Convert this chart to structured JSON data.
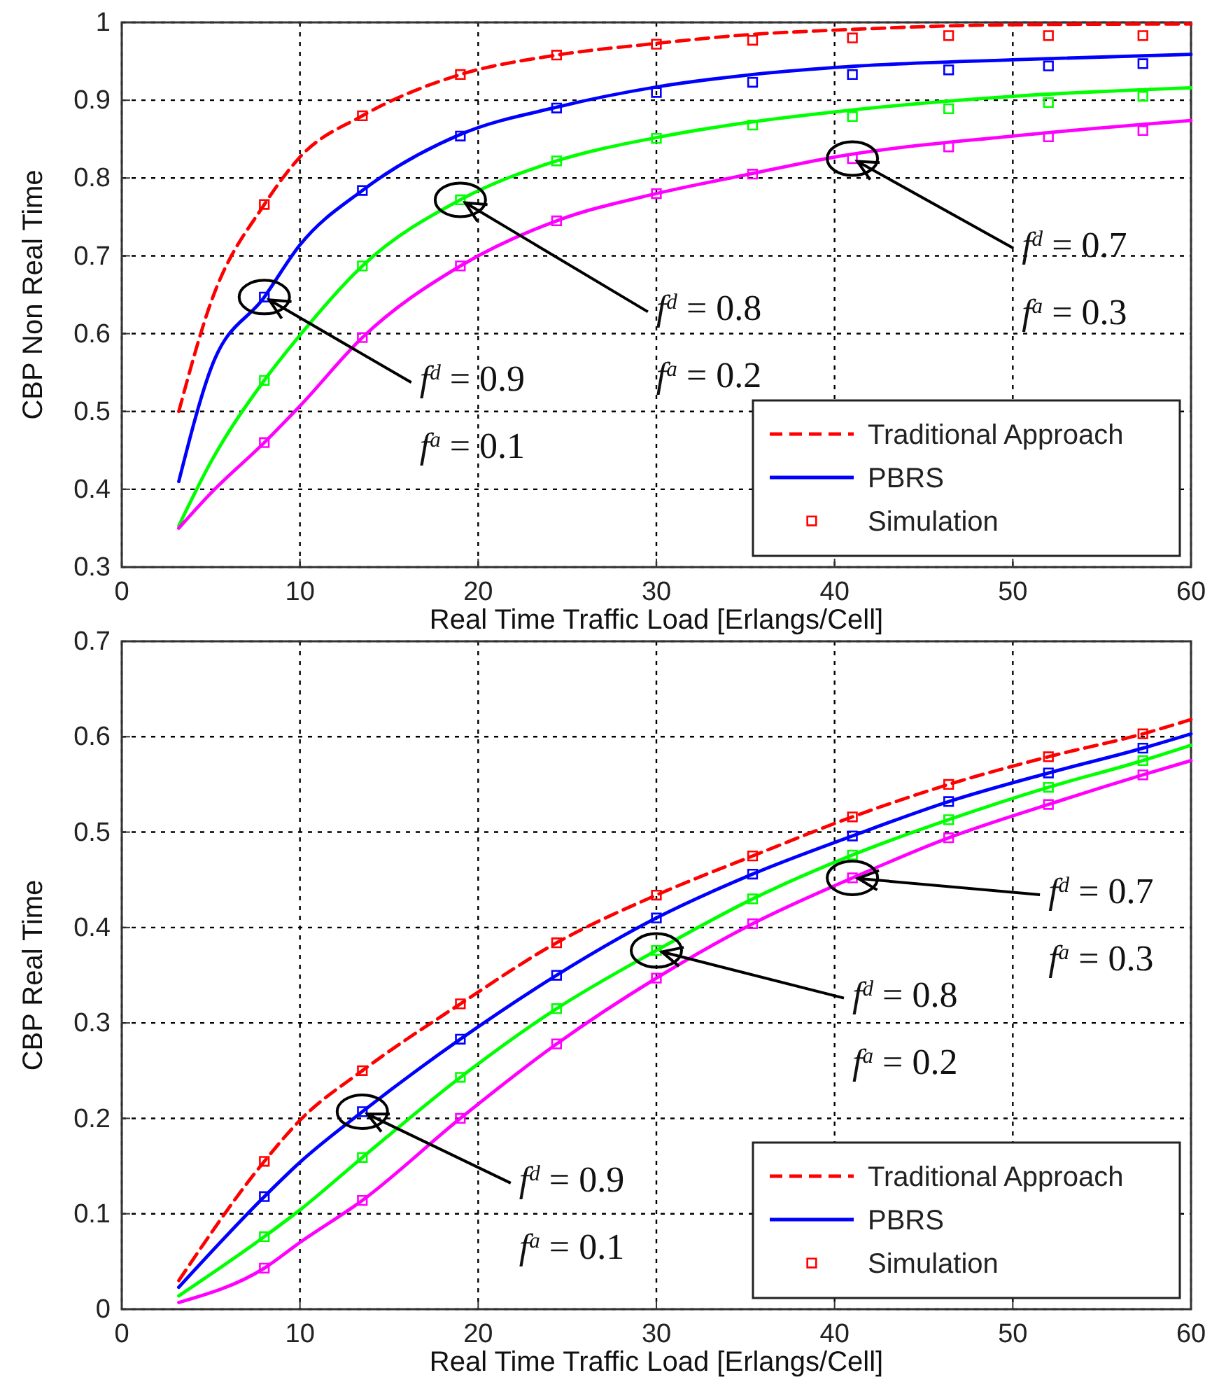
{
  "chart_data": [
    {
      "type": "line",
      "xlabel": "Real Time Traffic Load [Erlangs/Cell]",
      "ylabel": "CBP Non Real Time",
      "xlim": [
        0,
        60
      ],
      "xticks": [
        0,
        10,
        20,
        30,
        40,
        50,
        60
      ],
      "ylim": [
        0.3,
        1
      ],
      "yticks": [
        0.3,
        0.4,
        0.5,
        0.6,
        0.7,
        0.8,
        0.9,
        1
      ],
      "grid": true,
      "legend": "bottom right",
      "series": [
        {
          "name": "Traditional Approach",
          "type": "line",
          "color": "#ff0000",
          "line_style": "dashed",
          "marker": "none",
          "x": [
            3.2,
            5,
            8,
            10,
            13.5,
            19,
            24.4,
            30,
            35,
            40,
            50,
            60
          ],
          "values": [
            0.5,
            0.64,
            0.766,
            0.827,
            0.88,
            0.933,
            0.958,
            0.973,
            0.984,
            0.99,
            0.997,
            0.998
          ]
        },
        {
          "name": "PBRS",
          "type": "line",
          "color": "#0000ff",
          "line_style": "solid",
          "marker": "none",
          "x": [
            3.2,
            5,
            8,
            10,
            13.5,
            19,
            24.4,
            30,
            35,
            40,
            50,
            60
          ],
          "values": [
            0.41,
            0.555,
            0.647,
            0.714,
            0.784,
            0.856,
            0.891,
            0.917,
            0.932,
            0.942,
            0.952,
            0.959
          ]
        },
        {
          "type": "line",
          "color": "#00ff00",
          "line_style": "solid",
          "marker": "none",
          "x": [
            3.2,
            5,
            8,
            10,
            13.5,
            19,
            24.4,
            30,
            35,
            40,
            50,
            60
          ],
          "values": [
            0.353,
            0.435,
            0.54,
            0.598,
            0.687,
            0.772,
            0.822,
            0.852,
            0.871,
            0.885,
            0.905,
            0.916
          ]
        },
        {
          "type": "line",
          "color": "#ff00ff",
          "line_style": "solid",
          "marker": "none",
          "x": [
            3.2,
            5,
            8,
            10,
            13.5,
            19,
            24.4,
            30,
            35,
            40,
            50,
            60
          ],
          "values": [
            0.35,
            0.395,
            0.46,
            0.507,
            0.595,
            0.687,
            0.745,
            0.78,
            0.804,
            0.827,
            0.854,
            0.874
          ]
        },
        {
          "name": "Simulation",
          "type": "scatter",
          "color": "#ff0000",
          "marker": "square",
          "x": [
            8,
            13.5,
            19,
            24.4,
            30,
            35.4,
            41,
            46.4,
            52,
            57.3
          ],
          "values": [
            0.766,
            0.88,
            0.933,
            0.958,
            0.972,
            0.977,
            0.98,
            0.983,
            0.983,
            0.983
          ]
        },
        {
          "type": "scatter",
          "color": "#0000ff",
          "marker": "square",
          "x": [
            8,
            13.5,
            19,
            24.4,
            30,
            35.4,
            41,
            46.4,
            52,
            57.3
          ],
          "values": [
            0.647,
            0.784,
            0.854,
            0.89,
            0.91,
            0.923,
            0.933,
            0.939,
            0.944,
            0.947
          ]
        },
        {
          "type": "scatter",
          "color": "#00ff00",
          "marker": "square",
          "x": [
            8,
            13.5,
            19,
            24.4,
            30,
            35.4,
            41,
            46.4,
            52,
            57.3
          ],
          "values": [
            0.54,
            0.687,
            0.772,
            0.822,
            0.851,
            0.868,
            0.879,
            0.889,
            0.897,
            0.905
          ]
        },
        {
          "type": "scatter",
          "color": "#ff00ff",
          "marker": "square",
          "x": [
            8,
            13.5,
            19,
            24.4,
            30,
            35.4,
            41,
            46.4,
            52,
            57.3
          ],
          "values": [
            0.46,
            0.595,
            0.687,
            0.745,
            0.78,
            0.805,
            0.825,
            0.84,
            0.853,
            0.861
          ]
        }
      ],
      "annotations": [
        {
          "text": "f$^{d}$ = 0.9\nf$^{a}$ = 0.1",
          "x": 8,
          "y": 0.647
        },
        {
          "text": "f$^{d}$ = 0.8\nf$^{a}$ = 0.2",
          "x": 19,
          "y": 0.772
        },
        {
          "text": "f$^{d}$ = 0.7\nf$^{a}$ = 0.3",
          "x": 41,
          "y": 0.825
        }
      ]
    },
    {
      "type": "line",
      "xlabel": "Real Time Traffic Load [Erlangs/Cell]",
      "ylabel": "CBP Real Time",
      "xlim": [
        0,
        60
      ],
      "xticks": [
        0,
        10,
        20,
        30,
        40,
        50,
        60
      ],
      "ylim": [
        0,
        0.7
      ],
      "yticks": [
        0,
        0.1,
        0.2,
        0.3,
        0.4,
        0.5,
        0.6,
        0.7
      ],
      "grid": true,
      "legend": "bottom right",
      "series": [
        {
          "name": "Traditional Approach",
          "type": "line",
          "color": "#ff0000",
          "line_style": "dashed",
          "marker": "none",
          "x": [
            3.2,
            8,
            10,
            13.5,
            19,
            24.4,
            30,
            35.4,
            41,
            46.4,
            52,
            57.3,
            60
          ],
          "values": [
            0.03,
            0.155,
            0.198,
            0.25,
            0.32,
            0.384,
            0.434,
            0.475,
            0.516,
            0.55,
            0.579,
            0.603,
            0.618
          ]
        },
        {
          "name": "PBRS",
          "type": "line",
          "color": "#0000ff",
          "line_style": "solid",
          "marker": "none",
          "x": [
            3.2,
            8,
            10,
            13.5,
            19,
            24.4,
            30,
            35.4,
            41,
            46.4,
            52,
            57.3,
            60
          ],
          "values": [
            0.023,
            0.118,
            0.154,
            0.207,
            0.283,
            0.35,
            0.41,
            0.456,
            0.496,
            0.532,
            0.562,
            0.588,
            0.603
          ]
        },
        {
          "type": "line",
          "color": "#00ff00",
          "line_style": "solid",
          "marker": "none",
          "x": [
            3.2,
            8,
            10,
            13.5,
            19,
            24.4,
            30,
            35.4,
            41,
            46.4,
            52,
            57.3,
            60
          ],
          "values": [
            0.014,
            0.076,
            0.104,
            0.159,
            0.243,
            0.315,
            0.376,
            0.43,
            0.476,
            0.513,
            0.547,
            0.575,
            0.591
          ]
        },
        {
          "type": "line",
          "color": "#ff00ff",
          "line_style": "solid",
          "marker": "none",
          "x": [
            3.2,
            8,
            10,
            13.5,
            19,
            24.4,
            30,
            35.4,
            41,
            46.4,
            52,
            57.3,
            60
          ],
          "values": [
            0.007,
            0.043,
            0.07,
            0.114,
            0.2,
            0.278,
            0.347,
            0.404,
            0.452,
            0.494,
            0.529,
            0.56,
            0.575
          ]
        },
        {
          "name": "Simulation",
          "type": "scatter",
          "color": "#ff0000",
          "marker": "square",
          "x": [
            8,
            13.5,
            19,
            24.4,
            30,
            35.4,
            41,
            46.4,
            52,
            57.3
          ],
          "values": [
            0.155,
            0.25,
            0.32,
            0.384,
            0.434,
            0.475,
            0.516,
            0.55,
            0.579,
            0.603
          ]
        },
        {
          "type": "scatter",
          "color": "#0000ff",
          "marker": "square",
          "x": [
            8,
            13.5,
            19,
            24.4,
            30,
            35.4,
            41,
            46.4,
            52,
            57.3
          ],
          "values": [
            0.118,
            0.207,
            0.283,
            0.35,
            0.41,
            0.456,
            0.496,
            0.532,
            0.562,
            0.588
          ]
        },
        {
          "type": "scatter",
          "color": "#00ff00",
          "marker": "square",
          "x": [
            8,
            13.5,
            19,
            24.4,
            30,
            35.4,
            41,
            46.4,
            52,
            57.3
          ],
          "values": [
            0.076,
            0.159,
            0.243,
            0.315,
            0.376,
            0.43,
            0.476,
            0.513,
            0.547,
            0.575
          ]
        },
        {
          "type": "scatter",
          "color": "#ff00ff",
          "marker": "square",
          "x": [
            8,
            13.5,
            19,
            24.4,
            30,
            35.4,
            41,
            46.4,
            52,
            57.3
          ],
          "values": [
            0.043,
            0.114,
            0.2,
            0.278,
            0.347,
            0.404,
            0.452,
            0.494,
            0.529,
            0.56
          ]
        }
      ],
      "annotations": [
        {
          "text": "f$^{d}$ = 0.9\nf$^{a}$ = 0.1",
          "x": 13.5,
          "y": 0.207
        },
        {
          "text": "f$^{d}$ = 0.8\nf$^{a}$ = 0.2",
          "x": 30,
          "y": 0.376
        },
        {
          "text": "f$^{d}$ = 0.7\nf$^{a}$ = 0.3",
          "x": 41,
          "y": 0.452
        }
      ]
    }
  ]
}
